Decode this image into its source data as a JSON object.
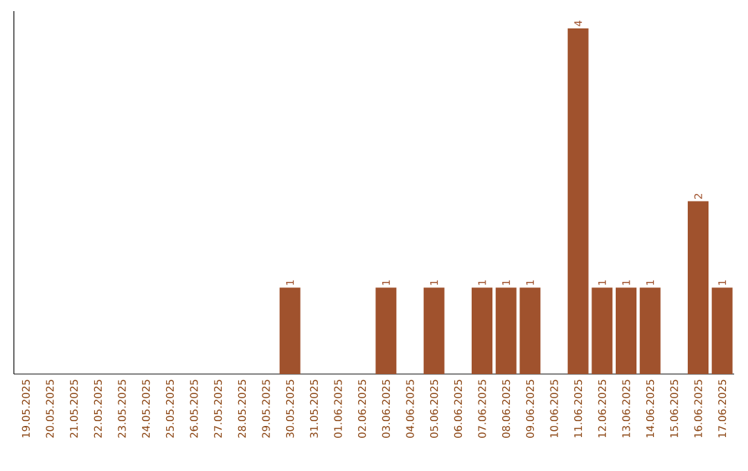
{
  "chart_data": {
    "type": "bar",
    "color": "#a0522d",
    "categories": [
      "19.05.2025",
      "20.05.2025",
      "21.05.2025",
      "22.05.2025",
      "23.05.2025",
      "24.05.2025",
      "25.05.2025",
      "26.05.2025",
      "27.05.2025",
      "28.05.2025",
      "29.05.2025",
      "30.05.2025",
      "31.05.2025",
      "01.06.2025",
      "02.06.2025",
      "03.06.2025",
      "04.06.2025",
      "05.06.2025",
      "06.06.2025",
      "07.06.2025",
      "08.06.2025",
      "09.06.2025",
      "10.06.2025",
      "11.06.2025",
      "12.06.2025",
      "13.06.2025",
      "14.06.2025",
      "15.06.2025",
      "16.06.2025",
      "17.06.2025"
    ],
    "values": [
      0,
      0,
      0,
      0,
      0,
      0,
      0,
      0,
      0,
      0,
      0,
      1,
      0,
      0,
      0,
      1,
      0,
      1,
      0,
      1,
      1,
      1,
      0,
      4,
      1,
      1,
      1,
      0,
      2,
      1
    ],
    "value_labels": [
      null,
      null,
      null,
      null,
      null,
      null,
      null,
      null,
      null,
      null,
      null,
      "1",
      null,
      null,
      null,
      "1",
      null,
      "1",
      null,
      "1",
      "1",
      "1",
      null,
      "4",
      "1",
      "1",
      "1",
      null,
      "2",
      "1"
    ],
    "data_labels": false
  }
}
